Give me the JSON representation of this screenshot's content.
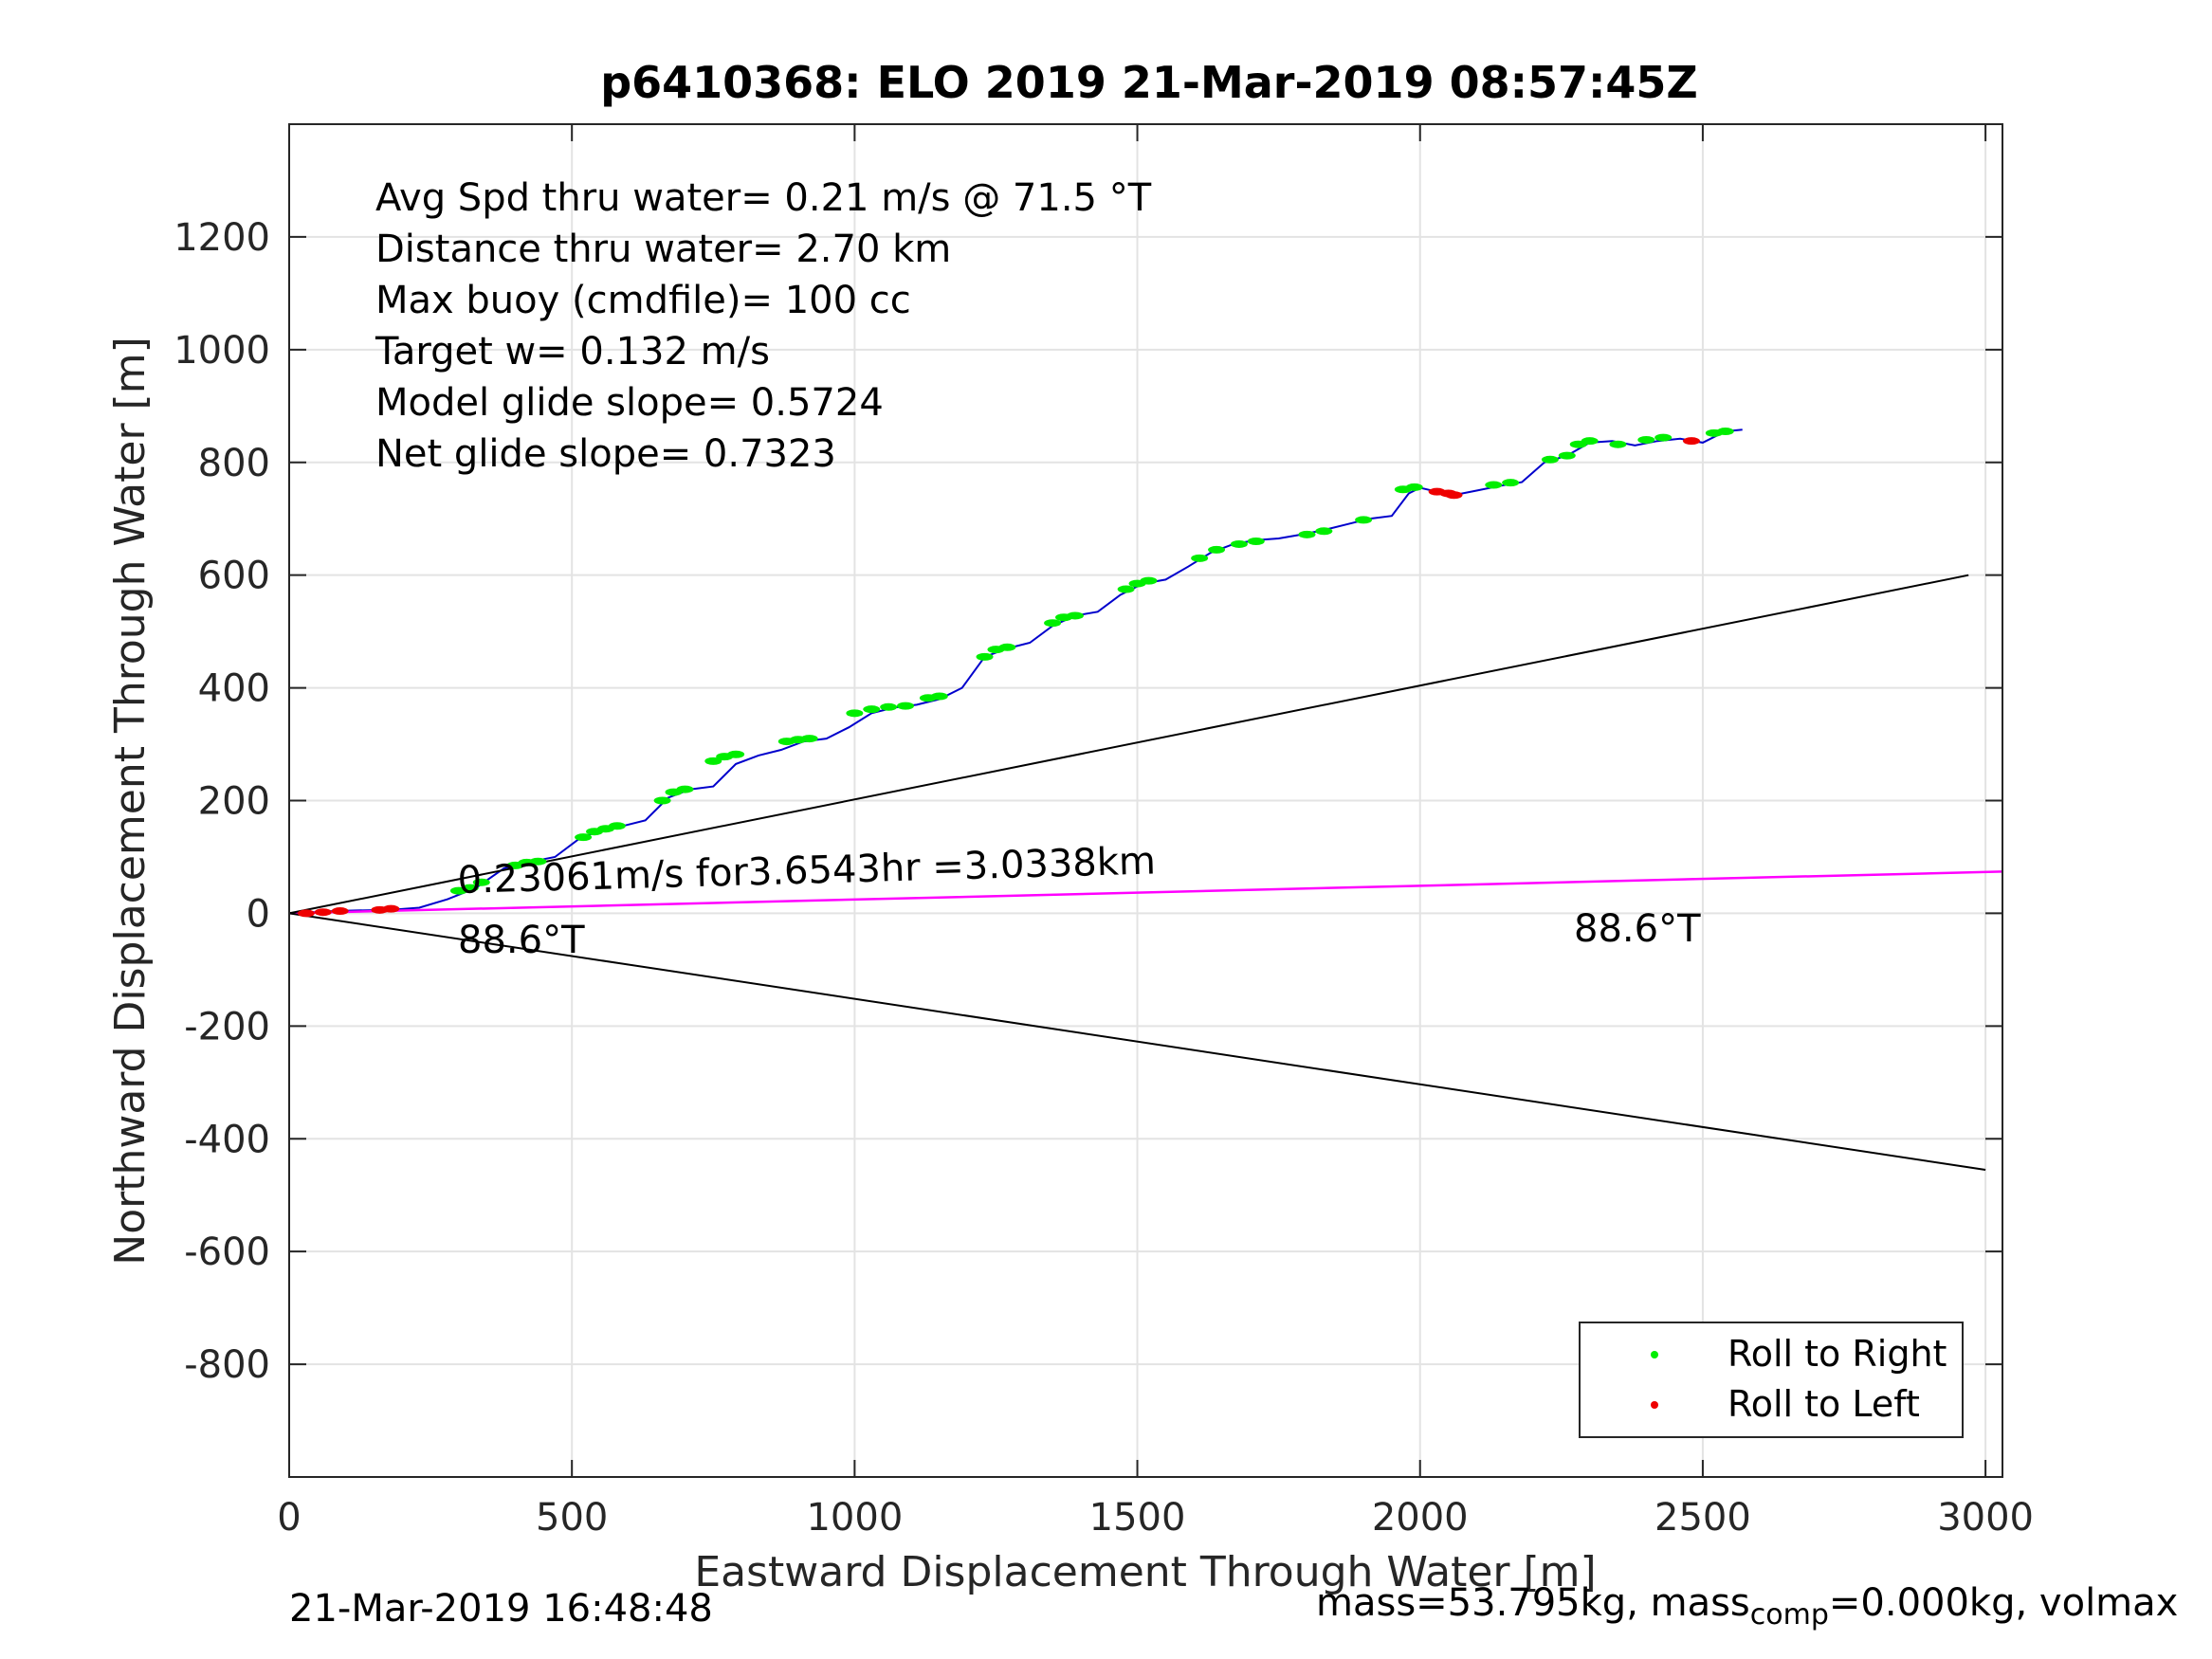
{
  "chart_data": {
    "type": "scatter",
    "title": "p6410368: ELO 2019 21-Mar-2019 08:57:45Z",
    "xlabel": "Eastward Displacement Through Water [m]",
    "ylabel": "Northward Displacement Through Water [m]",
    "xlim": [
      0,
      3030
    ],
    "ylim": [
      -1000,
      1400
    ],
    "xticks": [
      0,
      500,
      1000,
      1500,
      2000,
      2500,
      3000
    ],
    "yticks": [
      -800,
      -600,
      -400,
      -200,
      0,
      200,
      400,
      600,
      800,
      1000,
      1200
    ],
    "grid": true,
    "legend_position": "bottom-right",
    "annotations": [
      {
        "text": "Avg Spd thru water=  0.21 m/s @  71.5 °T"
      },
      {
        "text": "Distance thru water=  2.70 km"
      },
      {
        "text": "Max buoy (cmdfile)= 100 cc"
      },
      {
        "text": "Target w= 0.132 m/s"
      },
      {
        "text": "Model glide slope= 0.5724"
      },
      {
        "text": "Net glide slope= 0.7323"
      }
    ],
    "line_label": "0.23061m/s for3.6543hr =3.0338km",
    "heading_label_left": "88.6°T",
    "heading_label_right": "88.6°T",
    "series": [
      {
        "name": "Roll to Right",
        "color": "#00ee00",
        "kind": "points",
        "x": [
          300,
          320,
          340,
          400,
          420,
          440,
          520,
          540,
          560,
          580,
          660,
          680,
          700,
          750,
          770,
          790,
          880,
          900,
          920,
          1000,
          1030,
          1060,
          1090,
          1130,
          1150,
          1230,
          1250,
          1270,
          1350,
          1370,
          1390,
          1480,
          1500,
          1520,
          1610,
          1640,
          1680,
          1710,
          1800,
          1830,
          1900,
          1970,
          1990,
          2130,
          2160,
          2230,
          2260,
          2280,
          2300,
          2350,
          2400,
          2430,
          2520,
          2540
        ],
        "y": [
          40,
          45,
          55,
          85,
          90,
          92,
          135,
          145,
          150,
          155,
          200,
          215,
          220,
          270,
          278,
          282,
          305,
          308,
          310,
          355,
          362,
          366,
          368,
          382,
          385,
          455,
          468,
          472,
          515,
          525,
          528,
          575,
          585,
          590,
          630,
          645,
          655,
          660,
          672,
          678,
          698,
          752,
          756,
          760,
          764,
          805,
          812,
          832,
          838,
          832,
          840,
          844,
          852,
          855
        ]
      },
      {
        "name": "Roll to Left",
        "color": "#ee0000",
        "kind": "points",
        "x": [
          30,
          60,
          90,
          160,
          180,
          2030,
          2050,
          2060,
          2480
        ],
        "y": [
          0,
          2,
          4,
          6,
          8,
          748,
          745,
          742,
          838
        ]
      },
      {
        "name": "glider track",
        "color": "#0000cc",
        "kind": "line",
        "x": [
          0,
          40,
          80,
          120,
          180,
          230,
          280,
          330,
          380,
          430,
          470,
          510,
          550,
          590,
          630,
          670,
          710,
          750,
          790,
          830,
          870,
          910,
          950,
          990,
          1030,
          1070,
          1110,
          1150,
          1190,
          1230,
          1270,
          1310,
          1350,
          1390,
          1430,
          1470,
          1510,
          1550,
          1590,
          1630,
          1670,
          1710,
          1750,
          1790,
          1830,
          1870,
          1910,
          1950,
          1980,
          2000,
          2030,
          2060,
          2100,
          2140,
          2180,
          2220,
          2260,
          2300,
          2340,
          2380,
          2420,
          2460,
          2500,
          2540,
          2570
        ],
        "y": [
          0,
          2,
          4,
          5,
          6,
          10,
          25,
          45,
          80,
          92,
          100,
          130,
          148,
          155,
          165,
          205,
          220,
          225,
          265,
          280,
          290,
          305,
          310,
          330,
          355,
          365,
          370,
          380,
          400,
          455,
          470,
          480,
          510,
          528,
          535,
          565,
          585,
          592,
          615,
          640,
          655,
          662,
          665,
          672,
          680,
          690,
          700,
          705,
          745,
          755,
          748,
          742,
          750,
          758,
          765,
          800,
          812,
          835,
          838,
          830,
          838,
          842,
          835,
          855,
          858
        ]
      },
      {
        "name": "heading line",
        "color": "#ff00ff",
        "kind": "line",
        "x": [
          0,
          3030
        ],
        "y": [
          0,
          74
        ]
      },
      {
        "name": "upper bound",
        "color": "#000000",
        "kind": "line",
        "x": [
          0,
          2970
        ],
        "y": [
          0,
          600
        ]
      },
      {
        "name": "lower bound",
        "color": "#000000",
        "kind": "line",
        "x": [
          0,
          3000
        ],
        "y": [
          0,
          -455
        ]
      }
    ]
  },
  "legend": {
    "right_label": "Roll to Right",
    "left_label": "Roll to Left",
    "right_color": "#00ee00",
    "left_color": "#ee0000"
  },
  "footer": {
    "timestamp": "21-Mar-2019 16:48:48",
    "mass_prefix": "mass=53.795kg, mass",
    "mass_sub": "comp",
    "mass_suffix": "=0.000kg, volmax"
  }
}
